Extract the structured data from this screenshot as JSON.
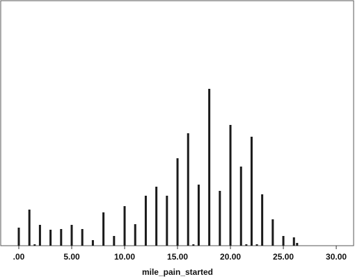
{
  "chart_data": {
    "type": "bar",
    "x_label": "mile_pain_started",
    "x": [
      0,
      1,
      1.5,
      2,
      3,
      4,
      5,
      6,
      7,
      8,
      9,
      10,
      11,
      12,
      13,
      14,
      15,
      16,
      16.5,
      17,
      18,
      19,
      20,
      21,
      21.5,
      22,
      22.5,
      23,
      24,
      25,
      26,
      26.3
    ],
    "values": [
      13,
      26,
      1,
      15,
      11.5,
      12,
      15,
      12,
      4,
      24,
      7,
      28.5,
      15.5,
      36,
      42.5,
      36,
      63,
      81,
      1,
      44,
      113,
      39.5,
      87,
      57,
      1,
      78.5,
      1,
      37,
      19,
      7,
      6,
      2
    ],
    "color": "#1a1a1a",
    "xlim": [
      -1.71,
      31.64
    ],
    "ylim": [
      0,
      174.5
    ],
    "xticks": [
      {
        "value": 0,
        "label": ".00"
      },
      {
        "value": 5,
        "label": "5.00"
      },
      {
        "value": 10,
        "label": "10.00"
      },
      {
        "value": 15,
        "label": "15.00"
      },
      {
        "value": 20,
        "label": "20.00"
      },
      {
        "value": 25,
        "label": "25.00"
      },
      {
        "value": 30,
        "label": "30.00"
      }
    ]
  }
}
